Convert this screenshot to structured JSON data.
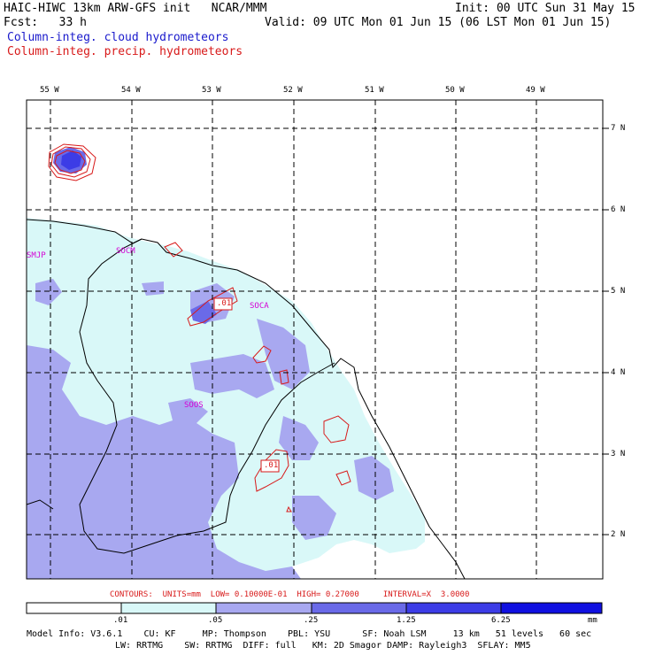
{
  "header": {
    "title_left": "HAIC-HIWC 13km ARW-GFS init   NCAR/MMM",
    "init": "Init: 00 UTC Sun 31 May 15",
    "fcst": "Fcst:   33 h",
    "valid": "Valid: 09 UTC Mon 01 Jun 15 (06 LST Mon 01 Jun 15)",
    "field_cloud": "Column-integ. cloud hydrometeors",
    "field_precip": "Column-integ. precip. hydrometeors"
  },
  "colors": {
    "cloud_label": "#1a1acc",
    "precip_contour": "#d81a1a",
    "station": "#d400d4",
    "shade_1": "#d9f8f8",
    "shade_2": "#a8a8f0",
    "shade_3": "#6a6ae8",
    "shade_4": "#3c3ce6",
    "shade_5": "#1010e0"
  },
  "map": {
    "longitudes": [
      "55 W",
      "54 W",
      "53 W",
      "52 W",
      "51 W",
      "50 W",
      "49 W"
    ],
    "latitudes": [
      "7 N",
      "6 N",
      "5 N",
      "4 N",
      "3 N",
      "2 N"
    ],
    "stations": [
      "SMJP",
      "SOCM",
      "SOCA",
      "SOOS"
    ],
    "contour_labels": [
      ".01",
      ".01"
    ]
  },
  "footer": {
    "contours_line": "CONTOURS:  UNITS=mm  LOW= 0.10000E-01  HIGH= 0.27000     INTERVAL=X  3.0000",
    "scale_labels": [
      ".01",
      ".05",
      ".25",
      "1.25",
      "6.25",
      "mm"
    ],
    "model_info_1": "Model Info: V3.6.1    CU: KF     MP: Thompson    PBL: YSU      SF: Noah LSM     13 km   51 levels   60 sec",
    "model_info_2": "LW: RRTMG    SW: RRTMG  DIFF: full   KM: 2D Smagor DAMP: Rayleigh3  SFLAY: MM5"
  }
}
